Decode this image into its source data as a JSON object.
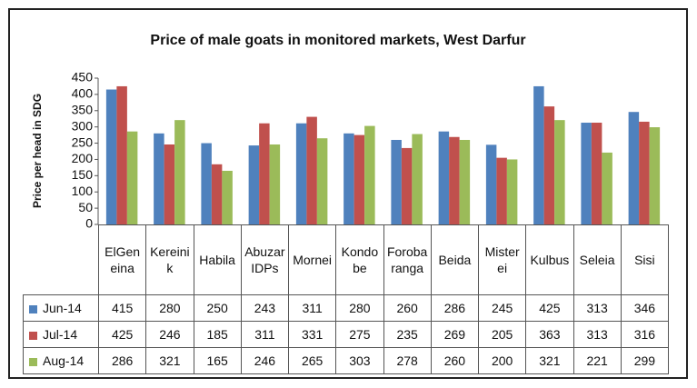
{
  "chart_data": {
    "type": "bar",
    "title": "Price of male goats in monitored markets, West Darfur",
    "y_label": "Price per head in SDG",
    "categories": [
      "ElGeneina",
      "Kereinik",
      "Habila",
      "AbuzarIDPs",
      "Mornei",
      "Kondobe",
      "Forobaranga",
      "Beida",
      "Misterei",
      "Kulbus",
      "Seleia",
      "Sisi"
    ],
    "series": [
      {
        "name": "Jun-14",
        "color": "#4f81bd",
        "values": [
          415,
          280,
          250,
          243,
          311,
          280,
          260,
          286,
          245,
          425,
          313,
          346
        ]
      },
      {
        "name": "Jul-14",
        "color": "#c0504d",
        "values": [
          425,
          246,
          185,
          311,
          331,
          275,
          235,
          269,
          205,
          363,
          313,
          316
        ]
      },
      {
        "name": "Aug-14",
        "color": "#9bbb59",
        "values": [
          286,
          321,
          165,
          246,
          265,
          303,
          278,
          260,
          200,
          321,
          221,
          299
        ]
      }
    ],
    "ylim": [
      0,
      450
    ],
    "yticks": [
      0,
      50,
      100,
      150,
      200,
      250,
      300,
      350,
      400,
      450
    ],
    "grid": false
  }
}
